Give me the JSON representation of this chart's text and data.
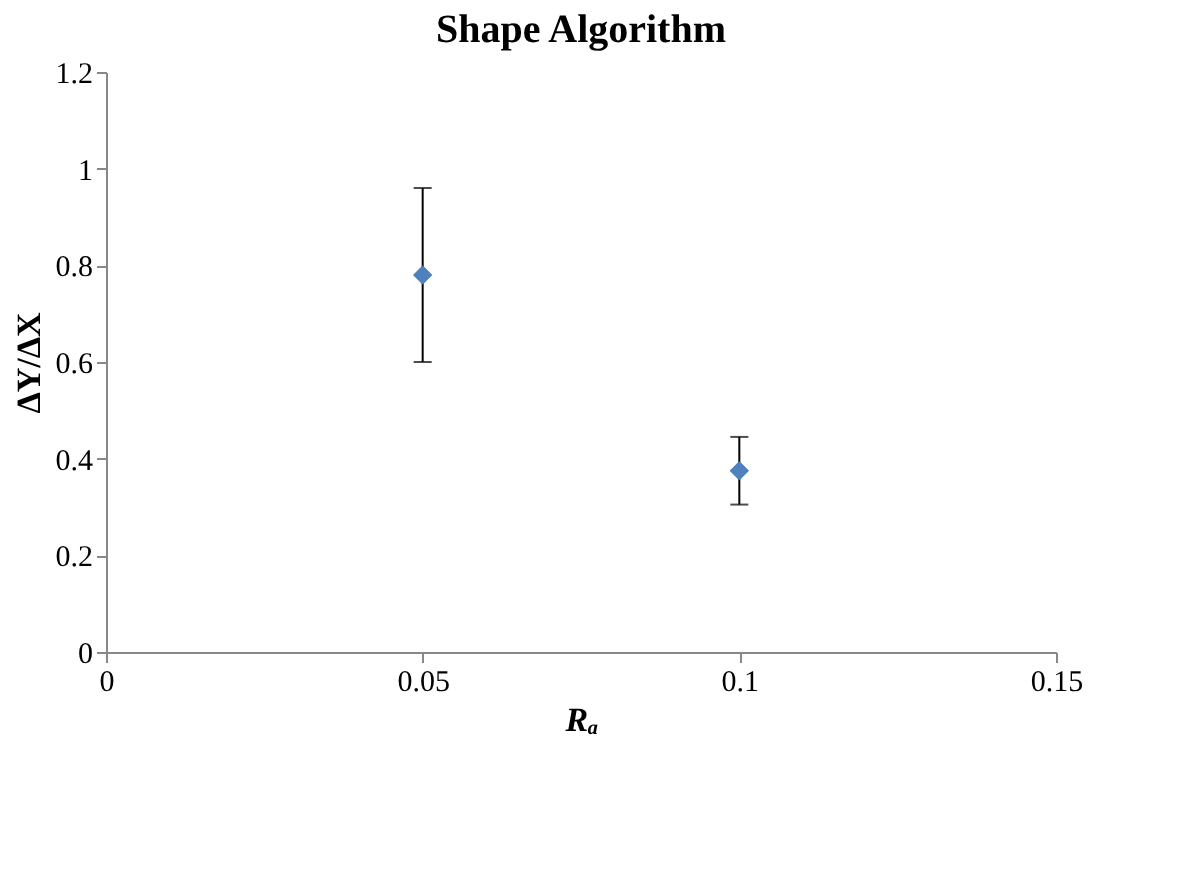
{
  "chart_data": {
    "type": "scatter",
    "title": "Shape Algorithm",
    "xlabel": "Rₐ",
    "ylabel": "ΔY/ΔX",
    "x": [
      0.05,
      0.1
    ],
    "series": [
      {
        "color": "#4f81bd",
        "values": [
          0.78,
          0.375
        ],
        "errors": [
          [
            0.6,
            0.96
          ],
          [
            0.305,
            0.445
          ]
        ]
      }
    ],
    "xlim": [
      0,
      0.15
    ],
    "xticks": [
      0,
      0.05,
      0.1,
      0.15
    ],
    "ylim": [
      0,
      1.2
    ],
    "yticks": [
      0,
      0.2,
      0.4,
      0.6,
      0.8,
      1,
      1.2
    ],
    "grid": false,
    "marker": "diamond"
  }
}
